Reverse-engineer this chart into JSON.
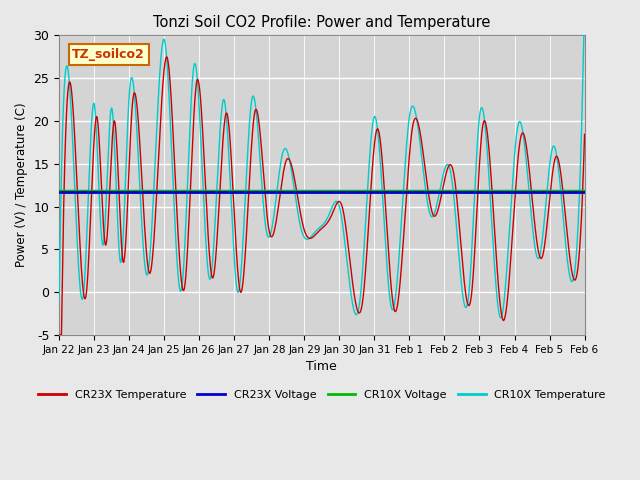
{
  "title": "Tonzi Soil CO2 Profile: Power and Temperature",
  "xlabel": "Time",
  "ylabel": "Power (V) / Temperature (C)",
  "ylim": [
    -5,
    30
  ],
  "voltage_value": 11.85,
  "cr23x_voltage_value": 11.65,
  "cr23x_voltage_color": "#0000cc",
  "cr10x_voltage_color": "#00bb00",
  "cr23x_temp_color": "#cc0000",
  "cr10x_temp_color": "#00cccc",
  "background_color": "#e8e8e8",
  "plot_bg_color": "#d4d4d4",
  "legend_labels": [
    "CR23X Temperature",
    "CR23X Voltage",
    "CR10X Voltage",
    "CR10X Temperature"
  ],
  "tick_labels": [
    "Jan 22",
    "Jan 23",
    "Jan 24",
    "Jan 25",
    "Jan 26",
    "Jan 27",
    "Jan 28",
    "Jan 29",
    "Jan 30",
    "Jan 31",
    "Feb 1",
    "Feb 2",
    "Feb 3",
    "Feb 4",
    "Feb 5",
    "Feb 6"
  ],
  "yticks": [
    -5,
    0,
    5,
    10,
    15,
    20,
    25,
    30
  ],
  "annotation_text": "TZ_soilco2",
  "cr10x_peaks": [
    0.3,
    1.0,
    1.5,
    2.0,
    3.0,
    3.85,
    4.7,
    5.5,
    6.4,
    7.3,
    8.0,
    9.0,
    10.0,
    11.2,
    12.0,
    13.1,
    14.1,
    14.9
  ],
  "cr10x_peak_vals": [
    24.0,
    22.0,
    21.5,
    23.0,
    29.5,
    26.5,
    22.5,
    22.5,
    16.5,
    7.0,
    10.0,
    20.5,
    20.5,
    13.5,
    20.5,
    19.5,
    17.0,
    17.0
  ],
  "cr10x_troughs": [
    0.0,
    0.7,
    1.25,
    1.75,
    2.5,
    3.5,
    4.3,
    5.1,
    5.9,
    6.9,
    7.7,
    8.6,
    9.5,
    10.6,
    11.7,
    12.6,
    13.7,
    14.6
  ],
  "cr10x_trough_vals": [
    -1.0,
    0.0,
    5.5,
    3.5,
    2.0,
    0.5,
    1.5,
    0.0,
    7.5,
    7.5,
    9.0,
    -0.5,
    -2.0,
    9.0,
    0.0,
    -3.0,
    4.0,
    1.5
  ]
}
